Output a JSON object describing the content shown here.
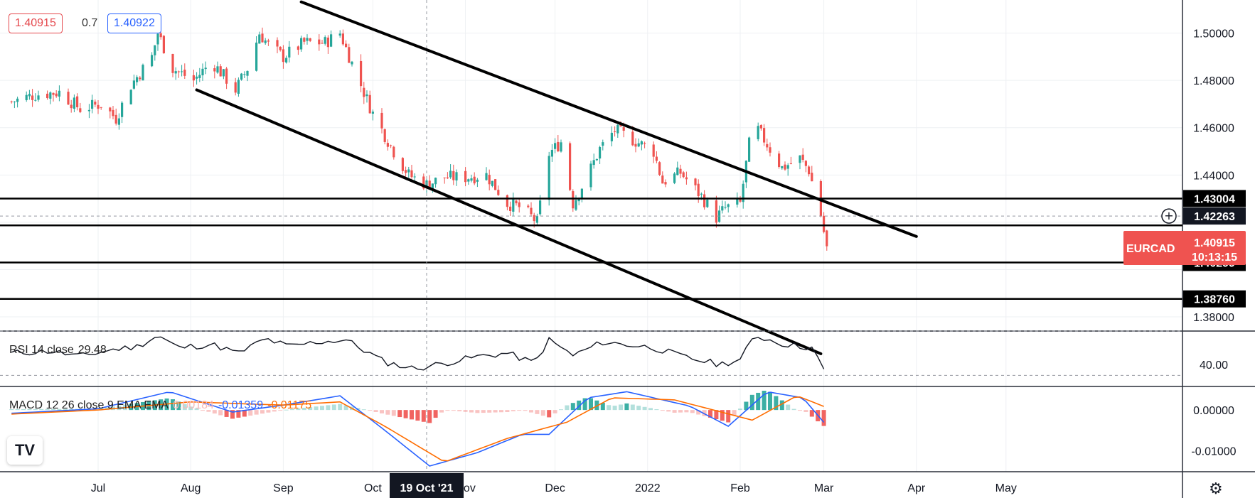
{
  "toolbar": {
    "bid_price": "1.40915",
    "spread": "0.7",
    "ask_price": "1.40922"
  },
  "symbol": {
    "name": "EURCAD",
    "last_price": "1.40915",
    "countdown": "10:13:15",
    "crosshair_price": "1.42263"
  },
  "time_cursor_label": "19 Oct '21",
  "colors": {
    "up": "#26a69a",
    "down": "#ef5350",
    "line": "#000000",
    "rsi": "#131722",
    "macd": "#2962ff",
    "signal": "#ff6d00"
  },
  "chart_data": [
    {
      "type": "candlestick",
      "ylim": [
        1.374,
        1.514
      ],
      "y_ticks": [
        "1.38000",
        "1.44000",
        "1.46000",
        "1.48000",
        "1.50000"
      ],
      "x_ticks": [
        "Jul",
        "Aug",
        "Sep",
        "Oct",
        "Nov",
        "Dec",
        "2022",
        "Feb",
        "Mar",
        "Apr",
        "May"
      ],
      "x_tick_dates": [
        "2021-07-01",
        "2021-08-01",
        "2021-09-01",
        "2021-10-01",
        "2021-11-01",
        "2021-12-01",
        "2022-01-01",
        "2022-02-01",
        "2022-03-01",
        "2022-04-01",
        "2022-05-01"
      ],
      "close_series_start": "2021-06-02",
      "close_series_end": "2022-03-02",
      "close_anchors": [
        [
          "2021-06-02",
          1.471
        ],
        [
          "2021-06-10",
          1.474
        ],
        [
          "2021-06-18",
          1.475
        ],
        [
          "2021-06-25",
          1.468
        ],
        [
          "2021-07-02",
          1.47
        ],
        [
          "2021-07-07",
          1.464
        ],
        [
          "2021-07-12",
          1.478
        ],
        [
          "2021-07-19",
          1.49
        ],
        [
          "2021-07-21",
          1.5
        ],
        [
          "2021-07-26",
          1.485
        ],
        [
          "2021-08-02",
          1.48
        ],
        [
          "2021-08-08",
          1.488
        ],
        [
          "2021-08-16",
          1.476
        ],
        [
          "2021-08-20",
          1.485
        ],
        [
          "2021-08-24",
          1.5
        ],
        [
          "2021-08-27",
          1.495
        ],
        [
          "2021-09-01",
          1.49
        ],
        [
          "2021-09-08",
          1.496
        ],
        [
          "2021-09-15",
          1.496
        ],
        [
          "2021-09-20",
          1.5
        ],
        [
          "2021-09-25",
          1.484
        ],
        [
          "2021-10-01",
          1.466
        ],
        [
          "2021-10-08",
          1.45
        ],
        [
          "2021-10-13",
          1.44
        ],
        [
          "2021-10-19",
          1.436
        ],
        [
          "2021-10-25",
          1.439
        ],
        [
          "2021-11-01",
          1.439
        ],
        [
          "2021-11-08",
          1.44
        ],
        [
          "2021-11-15",
          1.428
        ],
        [
          "2021-11-20",
          1.426
        ],
        [
          "2021-11-25",
          1.42
        ],
        [
          "2021-11-29",
          1.449
        ],
        [
          "2021-12-03",
          1.454
        ],
        [
          "2021-12-07",
          1.428
        ],
        [
          "2021-12-12",
          1.44
        ],
        [
          "2021-12-16",
          1.451
        ],
        [
          "2021-12-21",
          1.459
        ],
        [
          "2021-12-27",
          1.455
        ],
        [
          "2022-01-03",
          1.45
        ],
        [
          "2022-01-06",
          1.437
        ],
        [
          "2022-01-12",
          1.441
        ],
        [
          "2022-01-19",
          1.431
        ],
        [
          "2022-01-24",
          1.422
        ],
        [
          "2022-01-27",
          1.426
        ],
        [
          "2022-02-01",
          1.428
        ],
        [
          "2022-02-04",
          1.453
        ],
        [
          "2022-02-07",
          1.459
        ],
        [
          "2022-02-11",
          1.451
        ],
        [
          "2022-02-15",
          1.443
        ],
        [
          "2022-02-21",
          1.447
        ],
        [
          "2022-02-24",
          1.442
        ],
        [
          "2022-02-28",
          1.423
        ],
        [
          "2022-03-02",
          1.409
        ]
      ],
      "horizontal_levels": [
        {
          "label": "1.43004",
          "value": 1.43004
        },
        {
          "value": 1.4187
        },
        {
          "label": "1.40299",
          "value": 1.40299
        },
        {
          "label": "1.38760",
          "value": 1.3876
        }
      ],
      "trend_lines": [
        {
          "from": [
            "2021-09-07",
            1.5132
          ],
          "to": [
            "2022-04-01",
            1.414
          ]
        },
        {
          "from": [
            "2021-08-03",
            1.476
          ],
          "to": [
            "2022-02-28",
            1.3644
          ]
        }
      ]
    },
    {
      "type": "line",
      "title": "RSI 14 close",
      "value_label": "29.48",
      "ylim": [
        20,
        70
      ],
      "levels": [
        30,
        70
      ],
      "y_ticks": [
        "40.00"
      ],
      "series": [
        {
          "name": "RSI",
          "anchors": [
            [
              "2021-06-02",
              50
            ],
            [
              "2021-06-15",
              52
            ],
            [
              "2021-06-25",
              47
            ],
            [
              "2021-07-05",
              53
            ],
            [
              "2021-07-14",
              56
            ],
            [
              "2021-07-21",
              66
            ],
            [
              "2021-07-28",
              55
            ],
            [
              "2021-08-08",
              58
            ],
            [
              "2021-08-17",
              50
            ],
            [
              "2021-08-26",
              63
            ],
            [
              "2021-09-03",
              56
            ],
            [
              "2021-09-12",
              60
            ],
            [
              "2021-09-22",
              62
            ],
            [
              "2021-10-05",
              42
            ],
            [
              "2021-10-15",
              36
            ],
            [
              "2021-10-25",
              41
            ],
            [
              "2021-11-05",
              47
            ],
            [
              "2021-11-15",
              50
            ],
            [
              "2021-11-24",
              41
            ],
            [
              "2021-11-29",
              62
            ],
            [
              "2021-12-07",
              48
            ],
            [
              "2021-12-17",
              60
            ],
            [
              "2022-01-03",
              55
            ],
            [
              "2022-01-14",
              46
            ],
            [
              "2022-01-25",
              40
            ],
            [
              "2022-02-01",
              44
            ],
            [
              "2022-02-06",
              66
            ],
            [
              "2022-02-16",
              58
            ],
            [
              "2022-02-25",
              55
            ],
            [
              "2022-03-02",
              29.48
            ]
          ]
        }
      ]
    },
    {
      "type": "bar_line",
      "title": "MACD 12 26 close 9 EMA EMA",
      "values": [
        "0.00184",
        "-0.01359",
        "-0.01175"
      ],
      "ylim": [
        -0.0152,
        0.0058
      ],
      "y_ticks": [
        "0.00000",
        "-0.01000"
      ],
      "series": [
        {
          "name": "MACD",
          "anchors": [
            [
              "2021-06-02",
              -0.0008
            ],
            [
              "2021-07-01",
              0.0003
            ],
            [
              "2021-07-25",
              0.0045
            ],
            [
              "2021-08-15",
              -0.0005
            ],
            [
              "2021-09-01",
              0.0012
            ],
            [
              "2021-09-20",
              0.0035
            ],
            [
              "2021-10-05",
              -0.005
            ],
            [
              "2021-10-20",
              -0.0138
            ],
            [
              "2021-11-05",
              -0.0105
            ],
            [
              "2021-11-20",
              -0.006
            ],
            [
              "2021-11-29",
              -0.006
            ],
            [
              "2021-12-12",
              0.003
            ],
            [
              "2021-12-25",
              0.0045
            ],
            [
              "2022-01-15",
              0.001
            ],
            [
              "2022-01-28",
              -0.004
            ],
            [
              "2022-02-10",
              0.0045
            ],
            [
              "2022-02-22",
              0.003
            ],
            [
              "2022-03-02",
              -0.0039
            ]
          ]
        },
        {
          "name": "Signal",
          "anchors": [
            [
              "2021-06-02",
              -0.001
            ],
            [
              "2021-07-01",
              0.0
            ],
            [
              "2021-08-01",
              0.002
            ],
            [
              "2021-09-01",
              0.0012
            ],
            [
              "2021-09-20",
              0.002
            ],
            [
              "2021-10-05",
              -0.004
            ],
            [
              "2021-10-25",
              -0.0128
            ],
            [
              "2021-11-15",
              -0.007
            ],
            [
              "2021-12-05",
              -0.003
            ],
            [
              "2021-12-20",
              0.003
            ],
            [
              "2022-01-10",
              0.0025
            ],
            [
              "2022-02-05",
              -0.0025
            ],
            [
              "2022-02-20",
              0.0035
            ],
            [
              "2022-03-02",
              0.0006
            ]
          ]
        }
      ]
    }
  ]
}
